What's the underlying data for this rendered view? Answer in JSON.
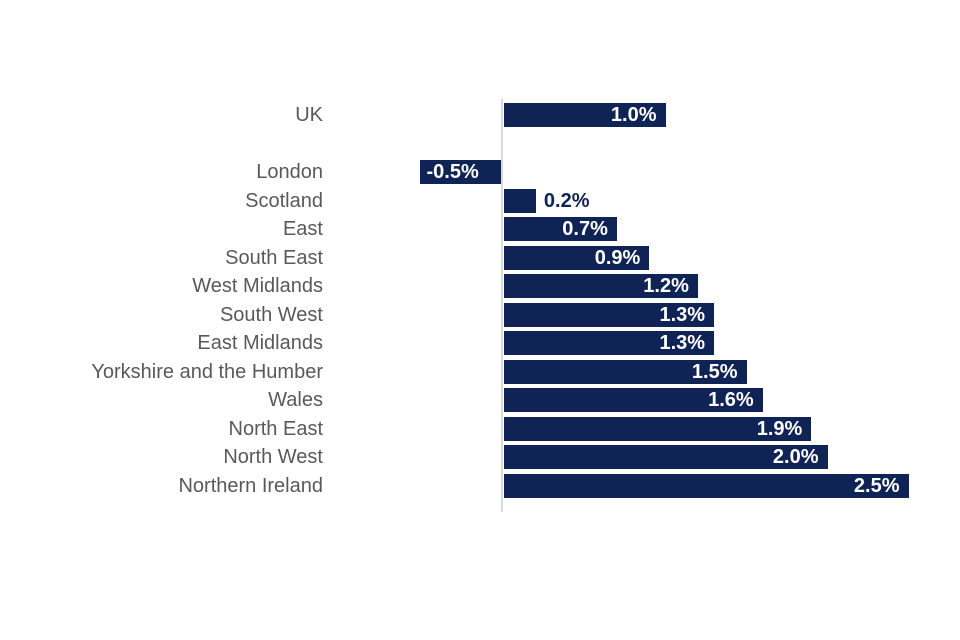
{
  "chart_data": {
    "type": "bar",
    "orientation": "horizontal",
    "title": "",
    "xlabel": "",
    "ylabel": "",
    "unit": "%",
    "categories": [
      "UK",
      "London",
      "Scotland",
      "East",
      "South East",
      "West Midlands",
      "South West",
      "East Midlands",
      "Yorkshire and the Humber",
      "Wales",
      "North East",
      "North West",
      "Northern Ireland"
    ],
    "values": [
      1.0,
      -0.5,
      0.2,
      0.7,
      0.9,
      1.2,
      1.3,
      1.3,
      1.5,
      1.6,
      1.9,
      2.0,
      2.5
    ],
    "value_labels": [
      "1.0%",
      "-0.5%",
      "0.2%",
      "0.7%",
      "0.9%",
      "1.2%",
      "1.3%",
      "1.3%",
      "1.5%",
      "1.6%",
      "1.9%",
      "2.0%",
      "2.5%"
    ],
    "label_placement": [
      "inside-end",
      "inside-end",
      "outside-end",
      "inside-end",
      "inside-end",
      "inside-end",
      "inside-end",
      "inside-end",
      "inside-end",
      "inside-end",
      "inside-end",
      "inside-end",
      "inside-end"
    ],
    "separator_after_category": "UK",
    "xlim": [
      -0.75,
      2.8
    ],
    "grid": false,
    "legend": false,
    "colors": {
      "bar": "#0f2354",
      "category_label": "#595959",
      "value_label_inside": "#ffffff",
      "value_label_outside": "#0f2354",
      "axis_line": "#d9d9d9"
    }
  }
}
